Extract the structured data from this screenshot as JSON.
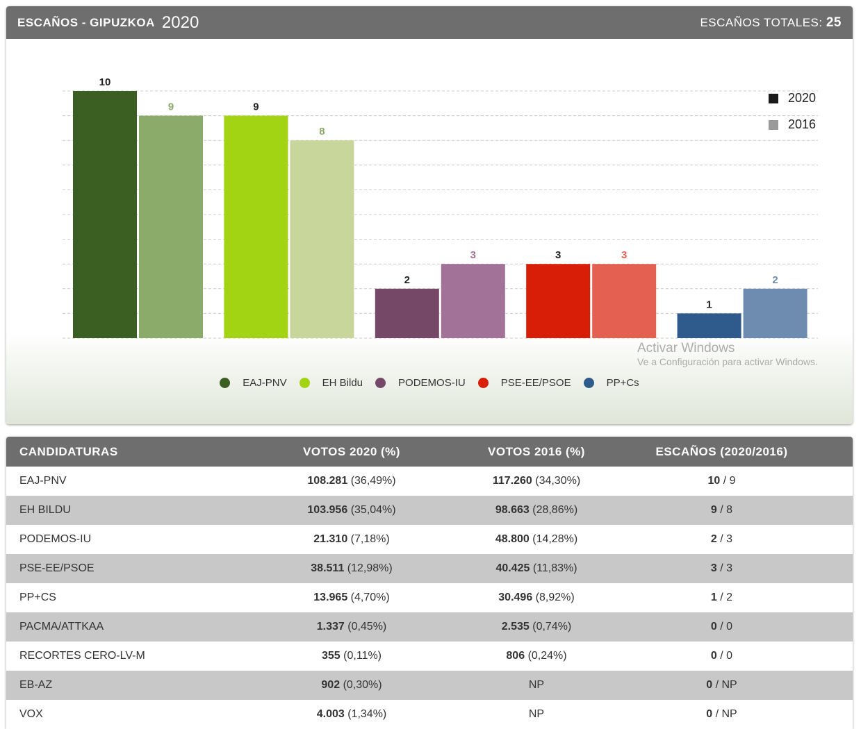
{
  "header": {
    "title": "ESCAÑOS - GIPUZKOA",
    "year": "2020",
    "total_label": "ESCAÑOS TOTALES:",
    "total_value": "25"
  },
  "chart_data": {
    "type": "bar",
    "categories": [
      "EAJ-PNV",
      "EH Bildu",
      "PODEMOS-IU",
      "PSE-EE/PSOE",
      "PP+Cs"
    ],
    "series": [
      {
        "name": "2020",
        "values": [
          10,
          9,
          2,
          3,
          1
        ]
      },
      {
        "name": "2016",
        "values": [
          9,
          8,
          3,
          3,
          2
        ]
      }
    ],
    "ylim": [
      0,
      10
    ],
    "grid": true,
    "legend": "top-right",
    "colors_2020": [
      "#3b5e22",
      "#a2d414",
      "#744866",
      "#d81e07",
      "#2e5a8c"
    ],
    "colors_2016": [
      "#8aab6a",
      "#c8d69c",
      "#a37298",
      "#e46050",
      "#6e8cb0"
    ],
    "legend_colors": {
      "2020": "#1a1a1a",
      "2016": "#999999"
    }
  },
  "table": {
    "headers": [
      "CANDIDATURAS",
      "VOTOS 2020 (%)",
      "VOTOS 2016 (%)",
      "ESCAÑOS (2020/2016)"
    ],
    "rows": [
      [
        "EAJ-PNV",
        "108.281",
        "(36,49%)",
        "117.260",
        "(34,30%)",
        "10",
        "/ 9"
      ],
      [
        "EH BILDU",
        "103.956",
        "(35,04%)",
        "98.663",
        "(28,86%)",
        "9",
        "/ 8"
      ],
      [
        "PODEMOS-IU",
        "21.310",
        "(7,18%)",
        "48.800",
        "(14,28%)",
        "2",
        "/ 3"
      ],
      [
        "PSE-EE/PSOE",
        "38.511",
        "(12,98%)",
        "40.425",
        "(11,83%)",
        "3",
        "/ 3"
      ],
      [
        "PP+CS",
        "13.965",
        "(4,70%)",
        "30.496",
        "(8,92%)",
        "1",
        "/ 2"
      ],
      [
        "PACMA/ATTKAA",
        "1.337",
        "(0,45%)",
        "2.535",
        "(0,74%)",
        "0",
        "/ 0"
      ],
      [
        "RECORTES CERO-LV-M",
        "355",
        "(0,11%)",
        "806",
        "(0,24%)",
        "0",
        "/ 0"
      ],
      [
        "EB-AZ",
        "902",
        "(0,30%)",
        "NP",
        "",
        "0",
        "/ NP"
      ],
      [
        "VOX",
        "4.003",
        "(1,34%)",
        "NP",
        "",
        "0",
        "/ NP"
      ]
    ]
  },
  "watermark": {
    "line1": "Activar Windows",
    "line2": "Ve a Configuración para activar Windows."
  }
}
